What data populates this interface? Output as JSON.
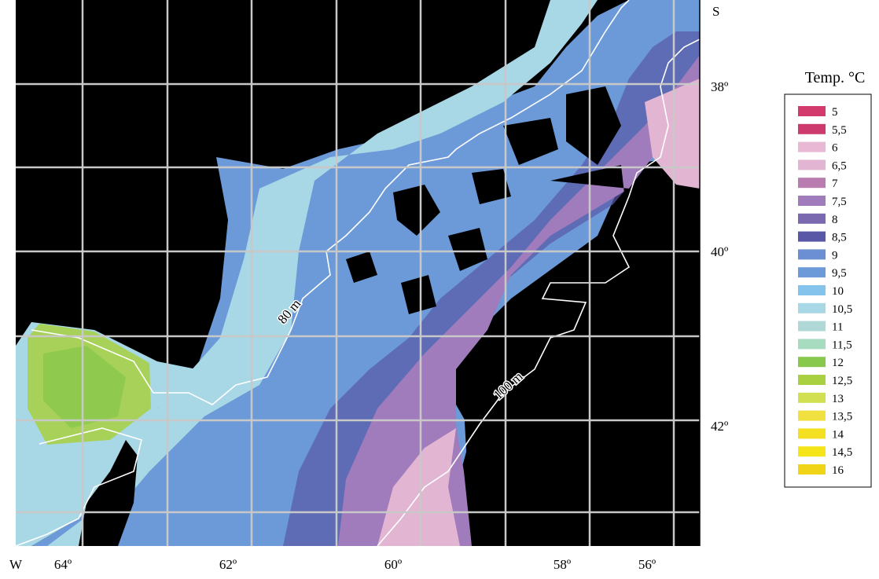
{
  "map": {
    "x_labels": [
      "64º",
      "62º",
      "60º",
      "58º",
      "56º"
    ],
    "y_labels": [
      "38º",
      "40º",
      "42º"
    ],
    "x_axis_label": "W",
    "y_axis_label": "S",
    "contour_labels": [
      "80 m",
      "100 m"
    ]
  },
  "legend": {
    "title": "Temp. °C",
    "items": [
      {
        "label": "5",
        "color": "#d23a6e"
      },
      {
        "label": "5,5",
        "color": "#cc3a6e"
      },
      {
        "label": "6",
        "color": "#e8b8d4"
      },
      {
        "label": "6,5",
        "color": "#e2b6d2"
      },
      {
        "label": "7",
        "color": "#b87cb0"
      },
      {
        "label": "7,5",
        "color": "#a07cbc"
      },
      {
        "label": "8",
        "color": "#7a68b0"
      },
      {
        "label": "8,5",
        "color": "#5858a6"
      },
      {
        "label": "9",
        "color": "#6c8ed2"
      },
      {
        "label": "9,5",
        "color": "#6c9ad8"
      },
      {
        "label": "10",
        "color": "#84c4ec"
      },
      {
        "label": "10,5",
        "color": "#a8d8e6"
      },
      {
        "label": "11",
        "color": "#b0d8d6"
      },
      {
        "label": "11,5",
        "color": "#a8dcc0"
      },
      {
        "label": "12",
        "color": "#88c84c"
      },
      {
        "label": "12,5",
        "color": "#a8d040"
      },
      {
        "label": "13",
        "color": "#d0e050"
      },
      {
        "label": "13,5",
        "color": "#f0e040"
      },
      {
        "label": "14",
        "color": "#f4e020"
      },
      {
        "label": "14,5",
        "color": "#f4e418"
      },
      {
        "label": "16",
        "color": "#f0d418"
      }
    ]
  }
}
